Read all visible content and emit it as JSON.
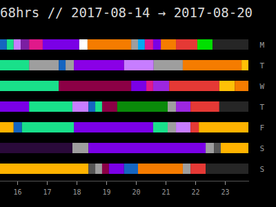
{
  "chart_data": {
    "type": "timeline",
    "title": "68hrs // 2017-08-14 → 2017-08-20",
    "categories": [
      "M",
      "T",
      "W",
      "T",
      "F",
      "S",
      "S"
    ],
    "segments": [
      [
        {
          "start": 15.42,
          "end": 15.65,
          "color": "#1565c0"
        },
        {
          "start": 15.65,
          "end": 15.88,
          "color": "#19e08a"
        },
        {
          "start": 15.88,
          "end": 16.12,
          "color": "#c77dff"
        },
        {
          "start": 16.12,
          "end": 16.4,
          "color": "#7b1fa2"
        },
        {
          "start": 16.4,
          "end": 16.86,
          "color": "#e0198a"
        },
        {
          "start": 16.86,
          "end": 18.09,
          "color": "#7a00e6"
        },
        {
          "start": 18.09,
          "end": 18.37,
          "color": "#ffffff"
        },
        {
          "start": 18.37,
          "end": 19.84,
          "color": "#f57c00"
        },
        {
          "start": 19.84,
          "end": 20.07,
          "color": "#9e9e9e"
        },
        {
          "start": 20.07,
          "end": 20.3,
          "color": "#03a9f4"
        },
        {
          "start": 20.3,
          "end": 20.58,
          "color": "#e0198a"
        },
        {
          "start": 20.58,
          "end": 20.84,
          "color": "#7a00e6"
        },
        {
          "start": 20.84,
          "end": 21.35,
          "color": "#f57c00"
        },
        {
          "start": 21.35,
          "end": 22.07,
          "color": "#e53935"
        },
        {
          "start": 22.07,
          "end": 22.58,
          "color": "#00e000"
        },
        {
          "start": 22.58,
          "end": 23.79,
          "color": "#262626"
        }
      ],
      [
        {
          "start": 15.42,
          "end": 16.4,
          "color": "#19e08a"
        },
        {
          "start": 16.4,
          "end": 17.4,
          "color": "#9e9e9e"
        },
        {
          "start": 17.4,
          "end": 17.63,
          "color": "#1565c0"
        },
        {
          "start": 17.63,
          "end": 17.91,
          "color": "#9e9e9e"
        },
        {
          "start": 17.91,
          "end": 19.6,
          "color": "#8a00e6"
        },
        {
          "start": 19.6,
          "end": 20.6,
          "color": "#c77dff"
        },
        {
          "start": 20.6,
          "end": 21.58,
          "color": "#9e9e9e"
        },
        {
          "start": 21.58,
          "end": 23.56,
          "color": "#f57c00"
        },
        {
          "start": 23.56,
          "end": 23.79,
          "color": "#ffc107"
        }
      ],
      [
        {
          "start": 15.42,
          "end": 17.4,
          "color": "#19e08a"
        },
        {
          "start": 17.4,
          "end": 19.84,
          "color": "#8b0045"
        },
        {
          "start": 19.84,
          "end": 20.35,
          "color": "#7a00e6"
        },
        {
          "start": 20.35,
          "end": 20.58,
          "color": "#e0198a"
        },
        {
          "start": 20.58,
          "end": 21.12,
          "color": "#9c27e0"
        },
        {
          "start": 21.12,
          "end": 22.81,
          "color": "#e53935"
        },
        {
          "start": 22.81,
          "end": 23.33,
          "color": "#ffc107"
        },
        {
          "start": 23.33,
          "end": 23.79,
          "color": "#f57c00"
        }
      ],
      [
        {
          "start": 15.42,
          "end": 16.4,
          "color": "#7a00e6"
        },
        {
          "start": 16.4,
          "end": 17.86,
          "color": "#19e08a"
        },
        {
          "start": 17.86,
          "end": 18.4,
          "color": "#c77dff"
        },
        {
          "start": 18.4,
          "end": 18.63,
          "color": "#1565c0"
        },
        {
          "start": 18.63,
          "end": 18.86,
          "color": "#19e08a"
        },
        {
          "start": 18.86,
          "end": 19.37,
          "color": "#8b0045"
        },
        {
          "start": 19.37,
          "end": 21.07,
          "color": "#0a8a0a"
        },
        {
          "start": 21.07,
          "end": 21.35,
          "color": "#9e9e9e"
        },
        {
          "start": 21.35,
          "end": 21.84,
          "color": "#9c27e0"
        },
        {
          "start": 21.84,
          "end": 22.81,
          "color": "#e53935"
        },
        {
          "start": 22.81,
          "end": 23.79,
          "color": "#262626"
        }
      ],
      [
        {
          "start": 15.42,
          "end": 15.88,
          "color": "#ffb300"
        },
        {
          "start": 15.88,
          "end": 16.16,
          "color": "#1565c0"
        },
        {
          "start": 16.16,
          "end": 17.91,
          "color": "#19e08a"
        },
        {
          "start": 17.91,
          "end": 20.58,
          "color": "#7a00e6"
        },
        {
          "start": 20.58,
          "end": 21.07,
          "color": "#19e08a"
        },
        {
          "start": 21.07,
          "end": 21.35,
          "color": "#9e9e9e"
        },
        {
          "start": 21.35,
          "end": 21.84,
          "color": "#c77dff"
        },
        {
          "start": 21.84,
          "end": 22.12,
          "color": "#e53935"
        },
        {
          "start": 22.12,
          "end": 23.79,
          "color": "#ffb300"
        }
      ],
      [
        {
          "start": 15.42,
          "end": 17.86,
          "color": "#2a0a3a"
        },
        {
          "start": 17.86,
          "end": 18.4,
          "color": "#9e9e9e"
        },
        {
          "start": 18.4,
          "end": 22.35,
          "color": "#7a00e6"
        },
        {
          "start": 22.35,
          "end": 22.63,
          "color": "#9e9e9e"
        },
        {
          "start": 22.63,
          "end": 22.86,
          "color": "#555555"
        },
        {
          "start": 22.86,
          "end": 23.79,
          "color": "#ffb300"
        }
      ],
      [
        {
          "start": 15.42,
          "end": 18.4,
          "color": "#ffb300"
        },
        {
          "start": 18.4,
          "end": 18.63,
          "color": "#555555"
        },
        {
          "start": 18.63,
          "end": 18.86,
          "color": "#9e9e9e"
        },
        {
          "start": 18.86,
          "end": 19.09,
          "color": "#8b0045"
        },
        {
          "start": 19.09,
          "end": 19.6,
          "color": "#7a00e6"
        },
        {
          "start": 19.6,
          "end": 20.07,
          "color": "#1565c0"
        },
        {
          "start": 20.07,
          "end": 21.58,
          "color": "#f57c00"
        },
        {
          "start": 21.58,
          "end": 21.84,
          "color": "#9e9e9e"
        },
        {
          "start": 21.84,
          "end": 22.35,
          "color": "#e53935"
        },
        {
          "start": 22.35,
          "end": 23.79,
          "color": "#262626"
        }
      ]
    ],
    "xlim": [
      15.42,
      23.79
    ],
    "xticks": [
      16,
      17,
      18,
      19,
      20,
      21,
      22,
      23
    ]
  }
}
